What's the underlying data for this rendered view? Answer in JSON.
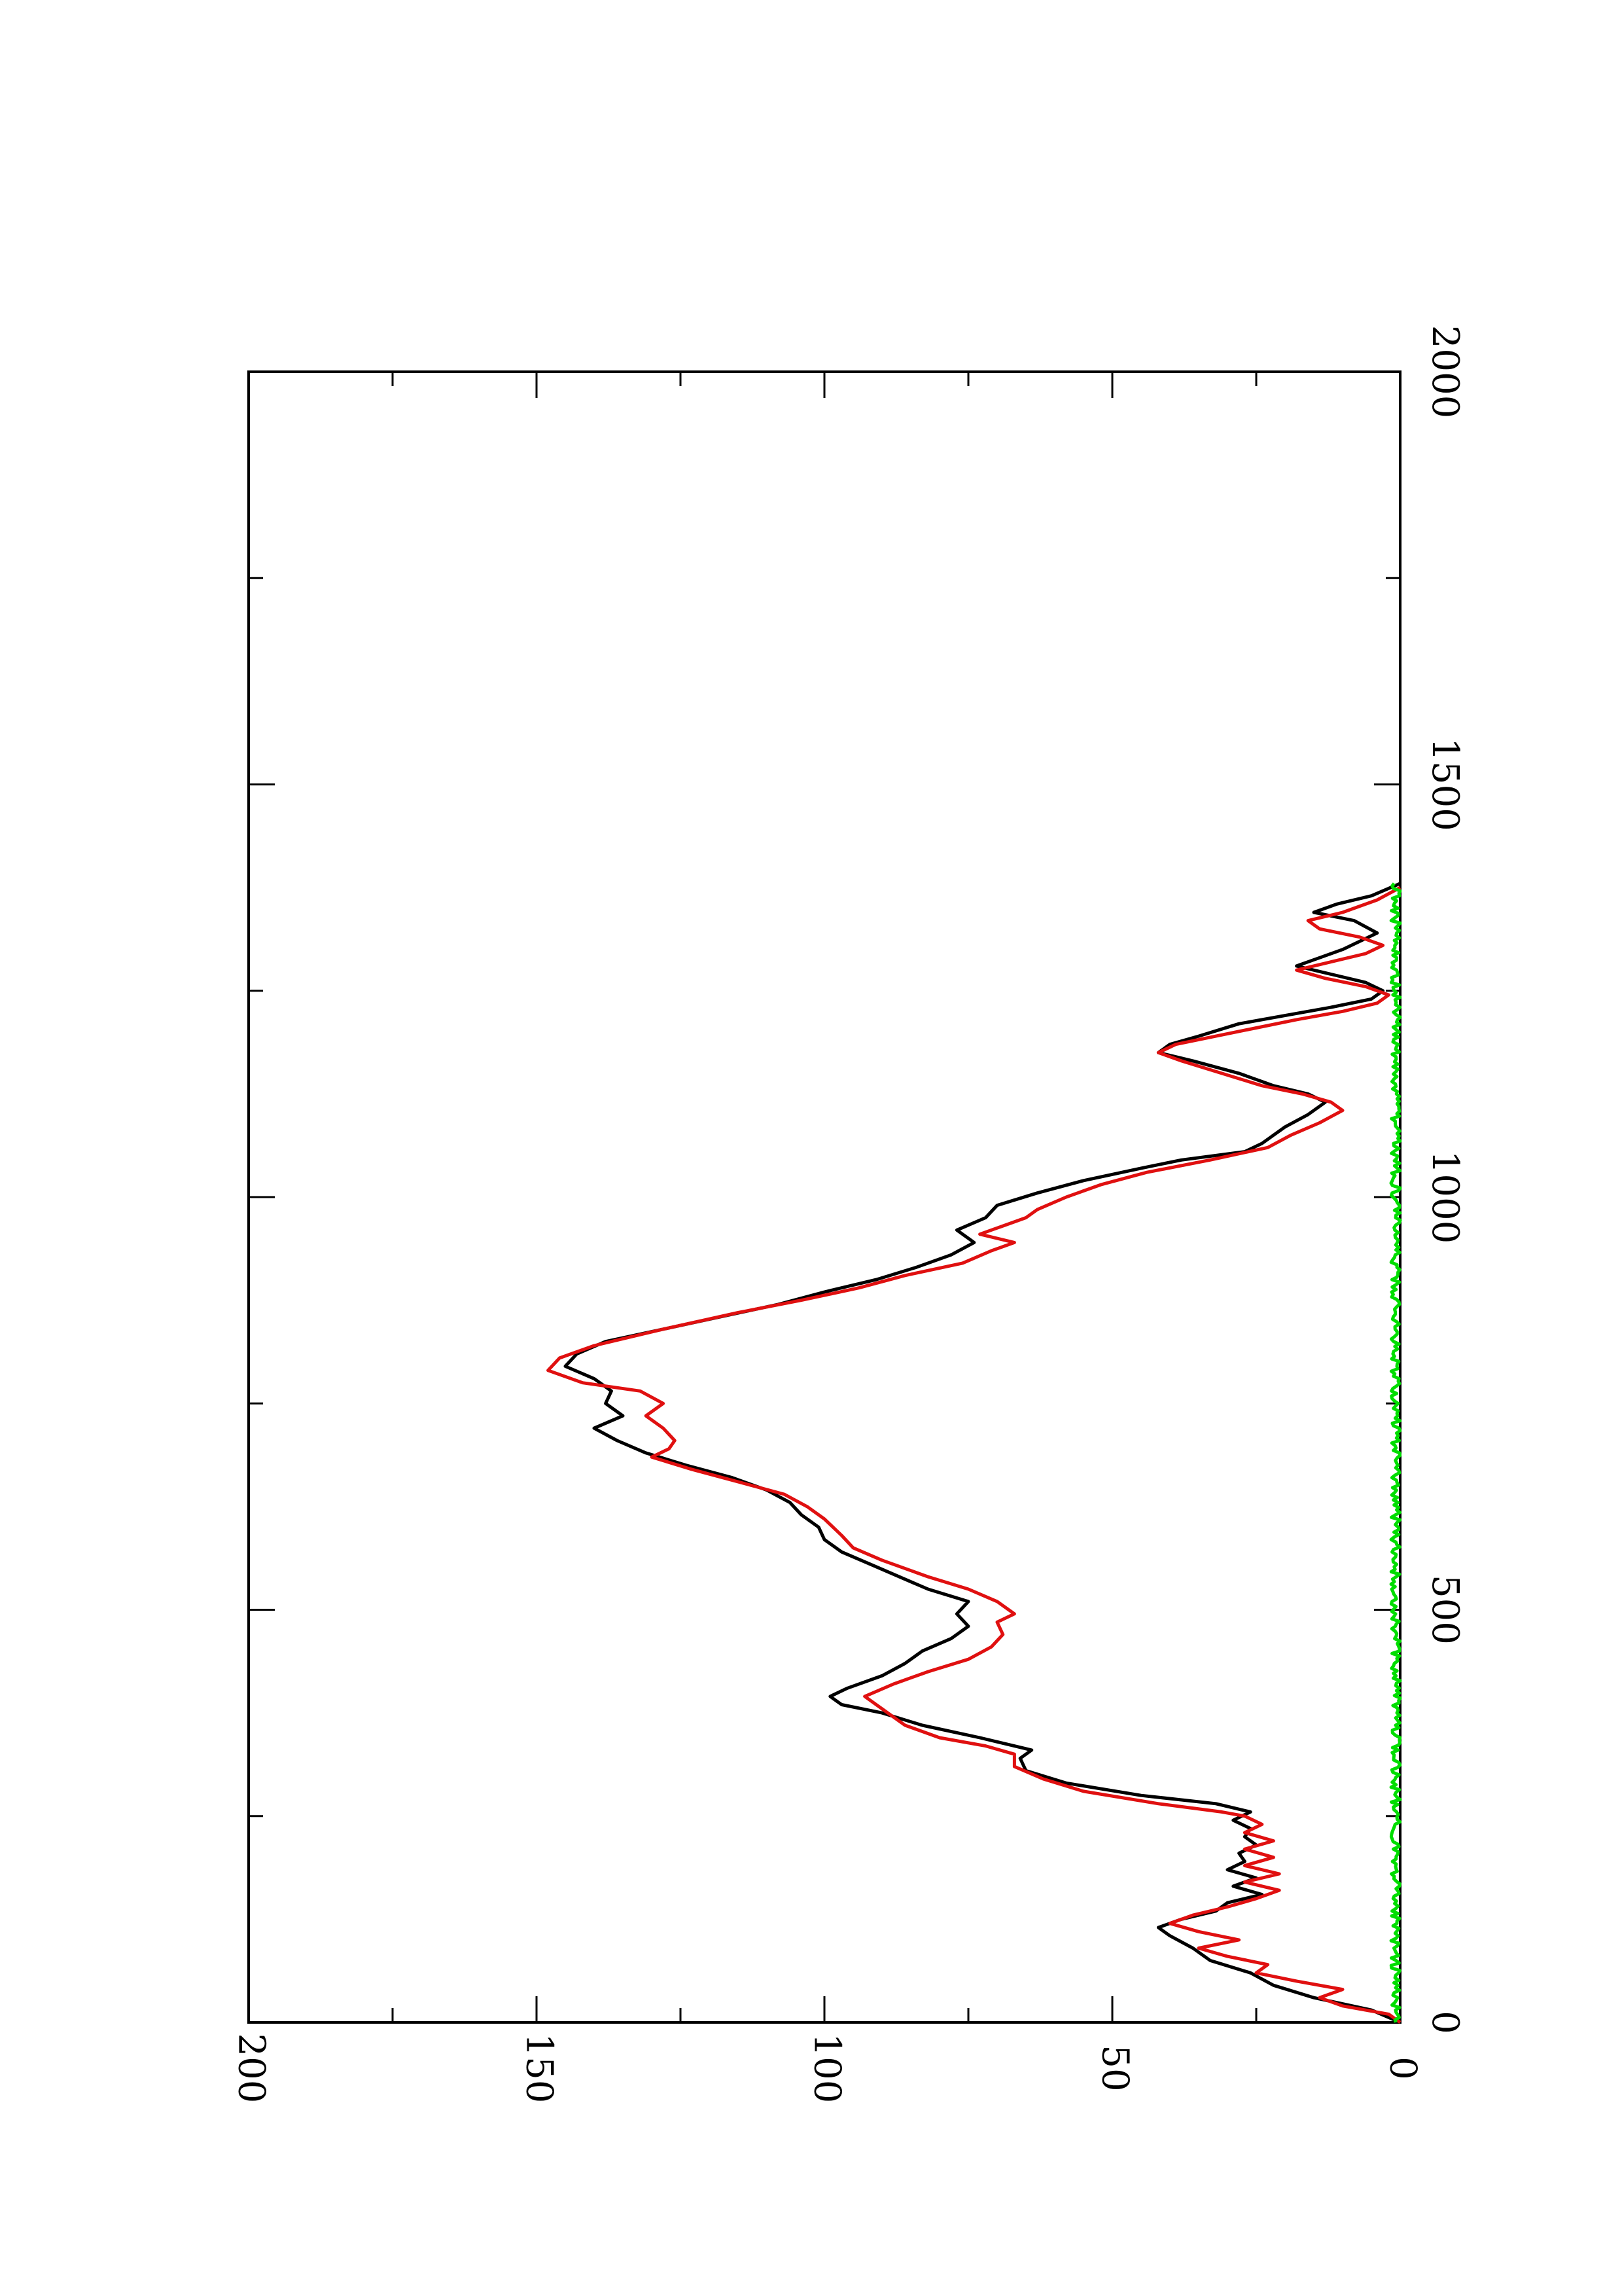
{
  "chart_data": {
    "type": "line",
    "orientation": "rotated-90-clockwise",
    "title": "",
    "xlabel": "",
    "ylabel": "",
    "xlim": [
      0,
      2000
    ],
    "ylim": [
      0,
      200
    ],
    "x_ticks": [
      "0",
      "500",
      "1000",
      "1500",
      "2000"
    ],
    "y_ticks": [
      "0",
      "50",
      "100",
      "150",
      "200"
    ],
    "grid": false,
    "legend": "none",
    "series": [
      {
        "color": "#000000",
        "points": [
          [
            0,
            0
          ],
          [
            15,
            5
          ],
          [
            30,
            15
          ],
          [
            45,
            22
          ],
          [
            60,
            26
          ],
          [
            75,
            33
          ],
          [
            90,
            36
          ],
          [
            105,
            40
          ],
          [
            115,
            42
          ],
          [
            125,
            38
          ],
          [
            135,
            32
          ],
          [
            145,
            30
          ],
          [
            155,
            24
          ],
          [
            165,
            29
          ],
          [
            175,
            25
          ],
          [
            185,
            30
          ],
          [
            195,
            27
          ],
          [
            205,
            28
          ],
          [
            215,
            25
          ],
          [
            225,
            27
          ],
          [
            235,
            26
          ],
          [
            245,
            29
          ],
          [
            255,
            26
          ],
          [
            265,
            32
          ],
          [
            275,
            45
          ],
          [
            290,
            58
          ],
          [
            305,
            65
          ],
          [
            320,
            66
          ],
          [
            330,
            64
          ],
          [
            345,
            73
          ],
          [
            360,
            83
          ],
          [
            375,
            90
          ],
          [
            385,
            97
          ],
          [
            395,
            99
          ],
          [
            405,
            96
          ],
          [
            420,
            90
          ],
          [
            435,
            86
          ],
          [
            450,
            83
          ],
          [
            465,
            78
          ],
          [
            480,
            75
          ],
          [
            495,
            77
          ],
          [
            510,
            75
          ],
          [
            525,
            82
          ],
          [
            540,
            87
          ],
          [
            555,
            92
          ],
          [
            570,
            97
          ],
          [
            585,
            100
          ],
          [
            600,
            101
          ],
          [
            615,
            104
          ],
          [
            630,
            106
          ],
          [
            645,
            110
          ],
          [
            660,
            116
          ],
          [
            675,
            124
          ],
          [
            690,
            131
          ],
          [
            705,
            136
          ],
          [
            720,
            140
          ],
          [
            735,
            135
          ],
          [
            750,
            138
          ],
          [
            765,
            137
          ],
          [
            780,
            140
          ],
          [
            795,
            145
          ],
          [
            810,
            143
          ],
          [
            825,
            138
          ],
          [
            840,
            128
          ],
          [
            855,
            118
          ],
          [
            870,
            108
          ],
          [
            885,
            100
          ],
          [
            900,
            91
          ],
          [
            915,
            84
          ],
          [
            930,
            78
          ],
          [
            945,
            74
          ],
          [
            960,
            77
          ],
          [
            975,
            72
          ],
          [
            990,
            70
          ],
          [
            1005,
            63
          ],
          [
            1020,
            55
          ],
          [
            1035,
            45
          ],
          [
            1045,
            38
          ],
          [
            1055,
            27
          ],
          [
            1065,
            24
          ],
          [
            1075,
            22
          ],
          [
            1085,
            20
          ],
          [
            1100,
            16
          ],
          [
            1115,
            13
          ],
          [
            1125,
            16
          ],
          [
            1135,
            22
          ],
          [
            1150,
            28
          ],
          [
            1165,
            36
          ],
          [
            1175,
            42
          ],
          [
            1185,
            40
          ],
          [
            1195,
            35
          ],
          [
            1210,
            28
          ],
          [
            1220,
            20
          ],
          [
            1230,
            12
          ],
          [
            1240,
            5
          ],
          [
            1250,
            3
          ],
          [
            1260,
            6
          ],
          [
            1270,
            12
          ],
          [
            1280,
            18
          ],
          [
            1290,
            14
          ],
          [
            1300,
            10
          ],
          [
            1310,
            7
          ],
          [
            1320,
            4
          ],
          [
            1335,
            8
          ],
          [
            1345,
            15
          ],
          [
            1355,
            11
          ],
          [
            1365,
            5
          ],
          [
            1380,
            0
          ]
        ]
      },
      {
        "color": "#e01010",
        "points": [
          [
            0,
            0
          ],
          [
            10,
            2
          ],
          [
            20,
            10
          ],
          [
            30,
            14
          ],
          [
            40,
            10
          ],
          [
            50,
            18
          ],
          [
            60,
            25
          ],
          [
            70,
            23
          ],
          [
            80,
            30
          ],
          [
            90,
            35
          ],
          [
            100,
            28
          ],
          [
            110,
            35
          ],
          [
            120,
            40
          ],
          [
            130,
            36
          ],
          [
            140,
            30
          ],
          [
            150,
            25
          ],
          [
            160,
            21
          ],
          [
            170,
            27
          ],
          [
            180,
            21
          ],
          [
            190,
            27
          ],
          [
            200,
            22
          ],
          [
            210,
            27
          ],
          [
            220,
            22
          ],
          [
            230,
            27
          ],
          [
            240,
            24
          ],
          [
            250,
            27
          ],
          [
            255,
            31
          ],
          [
            265,
            42
          ],
          [
            280,
            55
          ],
          [
            295,
            62
          ],
          [
            310,
            67
          ],
          [
            325,
            67
          ],
          [
            335,
            72
          ],
          [
            345,
            80
          ],
          [
            360,
            86
          ],
          [
            380,
            90
          ],
          [
            395,
            93
          ],
          [
            410,
            88
          ],
          [
            425,
            82
          ],
          [
            440,
            75
          ],
          [
            455,
            71
          ],
          [
            470,
            69
          ],
          [
            485,
            70
          ],
          [
            495,
            67
          ],
          [
            510,
            70
          ],
          [
            525,
            75
          ],
          [
            540,
            82
          ],
          [
            560,
            90
          ],
          [
            575,
            95
          ],
          [
            590,
            97
          ],
          [
            610,
            100
          ],
          [
            625,
            103
          ],
          [
            640,
            107
          ],
          [
            655,
            115
          ],
          [
            670,
            123
          ],
          [
            685,
            130
          ],
          [
            695,
            127
          ],
          [
            705,
            126
          ],
          [
            720,
            128
          ],
          [
            735,
            131
          ],
          [
            750,
            128
          ],
          [
            765,
            132
          ],
          [
            775,
            142
          ],
          [
            790,
            148
          ],
          [
            805,
            146
          ],
          [
            820,
            140
          ],
          [
            840,
            128
          ],
          [
            860,
            115
          ],
          [
            875,
            104
          ],
          [
            890,
            94
          ],
          [
            905,
            86
          ],
          [
            920,
            76
          ],
          [
            935,
            71
          ],
          [
            945,
            67
          ],
          [
            955,
            73
          ],
          [
            965,
            69
          ],
          [
            975,
            65
          ],
          [
            985,
            63
          ],
          [
            1000,
            58
          ],
          [
            1015,
            52
          ],
          [
            1030,
            44
          ],
          [
            1045,
            33
          ],
          [
            1060,
            23
          ],
          [
            1075,
            19
          ],
          [
            1090,
            14
          ],
          [
            1105,
            10
          ],
          [
            1115,
            12
          ],
          [
            1125,
            17
          ],
          [
            1135,
            24
          ],
          [
            1150,
            31
          ],
          [
            1165,
            38
          ],
          [
            1175,
            42
          ],
          [
            1185,
            39
          ],
          [
            1195,
            32
          ],
          [
            1205,
            25
          ],
          [
            1215,
            18
          ],
          [
            1225,
            10
          ],
          [
            1235,
            4
          ],
          [
            1245,
            2
          ],
          [
            1255,
            6
          ],
          [
            1265,
            13
          ],
          [
            1275,
            18
          ],
          [
            1285,
            12
          ],
          [
            1295,
            6
          ],
          [
            1305,
            3
          ],
          [
            1315,
            7
          ],
          [
            1325,
            14
          ],
          [
            1335,
            16
          ],
          [
            1345,
            10
          ],
          [
            1360,
            4
          ],
          [
            1375,
            0
          ]
        ]
      },
      {
        "color": "#00dd00",
        "noise_amplitude": 1.6,
        "x_end": 1380,
        "points": [
          [
            0,
            0
          ],
          [
            1380,
            0
          ]
        ]
      }
    ]
  }
}
